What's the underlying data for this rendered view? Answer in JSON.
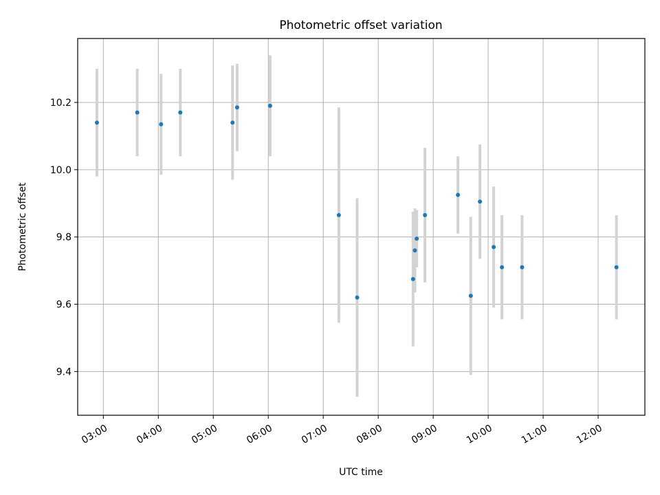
{
  "chart_data": {
    "type": "scatter",
    "title": "Photometric offset variation",
    "xlabel": "UTC time",
    "ylabel": "Photometric offset",
    "xlim": [
      "02:32",
      "12:51"
    ],
    "ylim": [
      9.27,
      10.39
    ],
    "grid": true,
    "x_tick_labels": [
      "03:00",
      "04:00",
      "05:00",
      "06:00",
      "07:00",
      "08:00",
      "09:00",
      "10:00",
      "11:00",
      "12:00"
    ],
    "y_ticks": [
      9.4,
      9.6,
      9.8,
      10.0,
      10.2
    ],
    "y_tick_labels": [
      "9.4",
      "9.6",
      "9.8",
      "10.0",
      "10.2"
    ],
    "marker_color": "#1f77b4",
    "errorbar_color": "#d3d3d3",
    "points": [
      {
        "x": "02:53",
        "y": 10.14,
        "err": 0.16
      },
      {
        "x": "03:37",
        "y": 10.17,
        "err": 0.13
      },
      {
        "x": "04:03",
        "y": 10.135,
        "err": 0.15
      },
      {
        "x": "04:24",
        "y": 10.17,
        "err": 0.13
      },
      {
        "x": "05:21",
        "y": 10.14,
        "err": 0.17
      },
      {
        "x": "05:26",
        "y": 10.185,
        "err": 0.13
      },
      {
        "x": "06:02",
        "y": 10.19,
        "err": 0.15
      },
      {
        "x": "07:17",
        "y": 9.865,
        "err": 0.32
      },
      {
        "x": "07:37",
        "y": 9.62,
        "err": 0.295
      },
      {
        "x": "08:38",
        "y": 9.675,
        "err": 0.2
      },
      {
        "x": "08:40",
        "y": 9.76,
        "err": 0.125
      },
      {
        "x": "08:42",
        "y": 9.795,
        "err": 0.085
      },
      {
        "x": "08:51",
        "y": 9.865,
        "err": 0.2
      },
      {
        "x": "09:27",
        "y": 9.925,
        "err": 0.115
      },
      {
        "x": "09:41",
        "y": 9.625,
        "err": 0.235
      },
      {
        "x": "09:51",
        "y": 9.905,
        "err": 0.17
      },
      {
        "x": "10:06",
        "y": 9.77,
        "err": 0.18
      },
      {
        "x": "10:15",
        "y": 9.71,
        "err": 0.155
      },
      {
        "x": "10:37",
        "y": 9.71,
        "err": 0.155
      },
      {
        "x": "12:20",
        "y": 9.71,
        "err": 0.155
      }
    ]
  }
}
